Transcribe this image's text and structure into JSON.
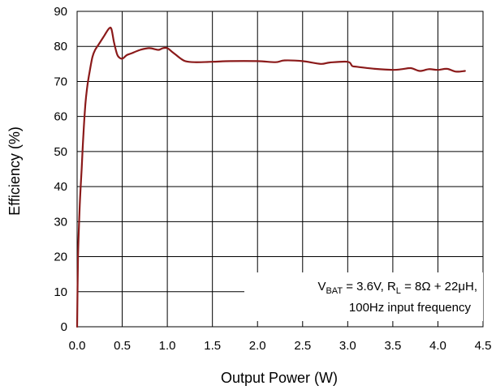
{
  "chart_data": {
    "type": "line",
    "title": "",
    "xlabel": "Output Power (W)",
    "ylabel": "Efficiency (%)",
    "xlim": [
      0,
      4.5
    ],
    "ylim": [
      0,
      90
    ],
    "grid": true,
    "x_ticks": [
      "0.0",
      "0.5",
      "1.0",
      "1.5",
      "2.0",
      "2.5",
      "3.0",
      "3.5",
      "4.0",
      "4.5"
    ],
    "y_ticks": [
      "0",
      "10",
      "20",
      "30",
      "40",
      "50",
      "60",
      "70",
      "80",
      "90"
    ],
    "annotation": {
      "line1": {
        "v": "V",
        "v_sub": "BAT",
        "v_rest": " = 3.6V, R",
        "r_sub": "L",
        "r_rest": " = 8Ω + 22μH,"
      },
      "line2": "100Hz input frequency"
    },
    "series": [
      {
        "color": "#8b1a1a",
        "x": [
          0.0,
          0.01,
          0.03,
          0.05,
          0.07,
          0.09,
          0.11,
          0.14,
          0.17,
          0.2,
          0.25,
          0.3,
          0.35,
          0.38,
          0.41,
          0.44,
          0.46,
          0.5,
          0.55,
          0.6,
          0.7,
          0.8,
          0.9,
          0.95,
          1.0,
          1.05,
          1.1,
          1.15,
          1.2,
          1.3,
          1.5,
          1.7,
          2.0,
          2.2,
          2.3,
          2.5,
          2.7,
          2.8,
          3.0,
          3.05,
          3.1,
          3.3,
          3.5,
          3.6,
          3.7,
          3.8,
          3.9,
          4.0,
          4.1,
          4.2,
          4.3
        ],
        "y": [
          0,
          20,
          35,
          45,
          55,
          63,
          68,
          73,
          77,
          79,
          81,
          83,
          85,
          85,
          81,
          78,
          77,
          76.5,
          77.5,
          78,
          79,
          79.5,
          79,
          79.5,
          79.5,
          78.5,
          77.5,
          76.5,
          75.8,
          75.5,
          75.6,
          75.8,
          75.8,
          75.5,
          76,
          75.8,
          75,
          75.4,
          75.6,
          74.4,
          74.2,
          73.6,
          73.3,
          73.5,
          73.8,
          73,
          73.5,
          73.3,
          73.6,
          72.8,
          73
        ]
      }
    ]
  }
}
